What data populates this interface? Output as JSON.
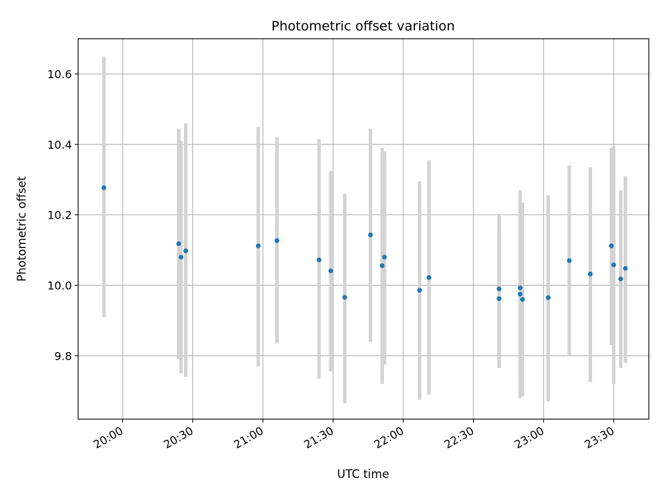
{
  "chart_data": {
    "type": "scatter",
    "title": "Photometric offset variation",
    "xlabel": "UTC time",
    "ylabel": "Photometric offset",
    "xlim": [
      "19:41",
      "23:45"
    ],
    "ylim": [
      9.62,
      10.7
    ],
    "x_ticks": [
      "20:00",
      "20:30",
      "21:00",
      "21:30",
      "22:00",
      "22:30",
      "23:00",
      "23:30"
    ],
    "y_ticks": [
      9.8,
      10.0,
      10.2,
      10.4,
      10.6
    ],
    "y_tick_labels": [
      "9.8",
      "10.0",
      "10.2",
      "10.4",
      "10.6"
    ],
    "grid": true,
    "point_color": "#1f77b4",
    "errorbar_color": "#d3d3d3",
    "points": [
      {
        "x": "19:52",
        "y": 10.277,
        "low": 9.91,
        "high": 10.65
      },
      {
        "x": "20:24",
        "y": 10.118,
        "low": 9.79,
        "high": 10.445
      },
      {
        "x": "20:25",
        "y": 10.08,
        "low": 9.75,
        "high": 10.41
      },
      {
        "x": "20:27",
        "y": 10.098,
        "low": 9.74,
        "high": 10.46
      },
      {
        "x": "20:58",
        "y": 10.112,
        "low": 9.77,
        "high": 10.45
      },
      {
        "x": "21:06",
        "y": 10.127,
        "low": 9.835,
        "high": 10.42
      },
      {
        "x": "21:24",
        "y": 10.072,
        "low": 9.735,
        "high": 10.415
      },
      {
        "x": "21:29",
        "y": 10.041,
        "low": 9.755,
        "high": 10.325
      },
      {
        "x": "21:35",
        "y": 9.966,
        "low": 9.665,
        "high": 10.26
      },
      {
        "x": "21:46",
        "y": 10.143,
        "low": 9.84,
        "high": 10.445
      },
      {
        "x": "21:51",
        "y": 10.056,
        "low": 9.72,
        "high": 10.39
      },
      {
        "x": "21:52",
        "y": 10.08,
        "low": 9.775,
        "high": 10.38
      },
      {
        "x": "22:07",
        "y": 9.986,
        "low": 9.675,
        "high": 10.295
      },
      {
        "x": "22:11",
        "y": 10.022,
        "low": 9.69,
        "high": 10.355
      },
      {
        "x": "22:41",
        "y": 9.962,
        "low": 9.765,
        "high": 10.16
      },
      {
        "x": "22:41",
        "y": 9.99,
        "low": 9.78,
        "high": 10.2
      },
      {
        "x": "22:50",
        "y": 9.993,
        "low": 9.745,
        "high": 10.245
      },
      {
        "x": "22:50",
        "y": 9.975,
        "low": 9.68,
        "high": 10.27
      },
      {
        "x": "22:51",
        "y": 9.96,
        "low": 9.685,
        "high": 10.235
      },
      {
        "x": "23:02",
        "y": 9.965,
        "low": 9.67,
        "high": 10.255
      },
      {
        "x": "23:11",
        "y": 10.07,
        "low": 9.8,
        "high": 10.34
      },
      {
        "x": "23:20",
        "y": 10.032,
        "low": 9.725,
        "high": 10.335
      },
      {
        "x": "23:29",
        "y": 10.112,
        "low": 9.83,
        "high": 10.39
      },
      {
        "x": "23:30",
        "y": 10.058,
        "low": 9.72,
        "high": 10.395
      },
      {
        "x": "23:33",
        "y": 10.018,
        "low": 9.765,
        "high": 10.27
      },
      {
        "x": "23:35",
        "y": 10.048,
        "low": 9.78,
        "high": 10.31
      }
    ]
  }
}
